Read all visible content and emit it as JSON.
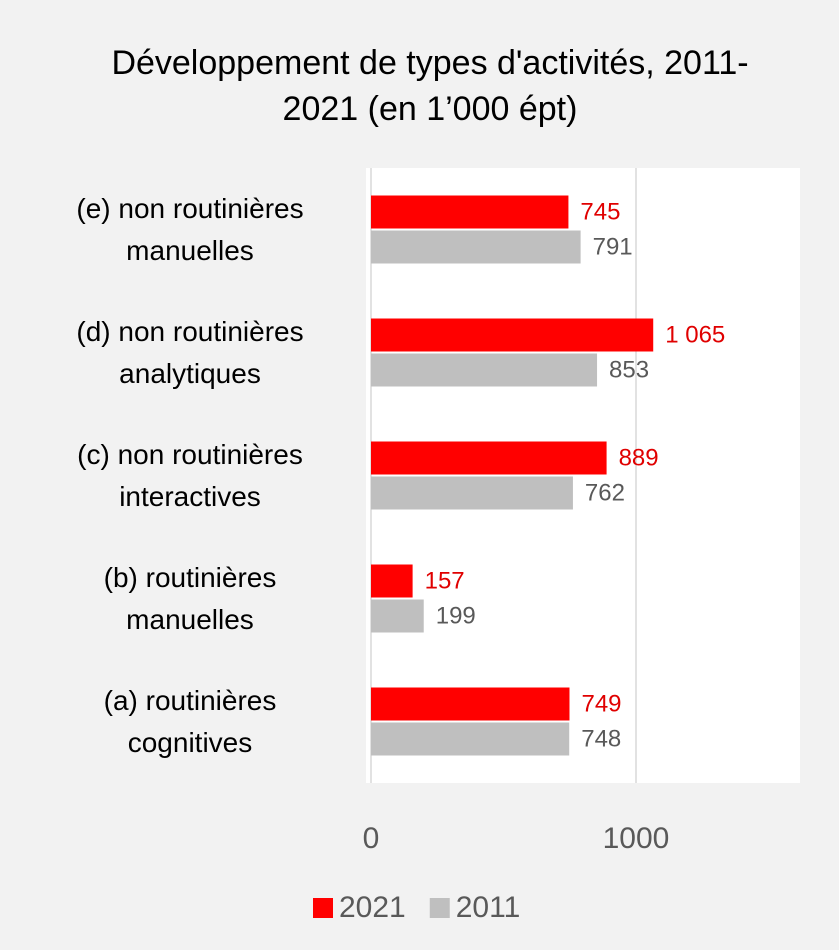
{
  "chart_data": {
    "type": "bar",
    "orientation": "horizontal",
    "title": "Développement de types d'activités, 2011-2021 (en 1’000 épt)",
    "categories": [
      "(e) non routinières manuelles",
      "(d) non routinières analytiques",
      "(c) non routinières interactives",
      "(b) routinières manuelles",
      "(a) routinières cognitives"
    ],
    "series": [
      {
        "name": "2021",
        "color": "#ff0000",
        "label_color": "#e00000",
        "values": [
          745,
          1065,
          889,
          157,
          749
        ],
        "value_labels": [
          "745",
          "1 065",
          "889",
          "157",
          "749"
        ]
      },
      {
        "name": "2011",
        "color": "#bfbfbf",
        "label_color": "#595959",
        "values": [
          791,
          853,
          762,
          199,
          748
        ]
      }
    ],
    "xlim": [
      0,
      1600
    ],
    "xticks": [
      0,
      1000
    ],
    "grid": true,
    "legend": "bottom"
  }
}
